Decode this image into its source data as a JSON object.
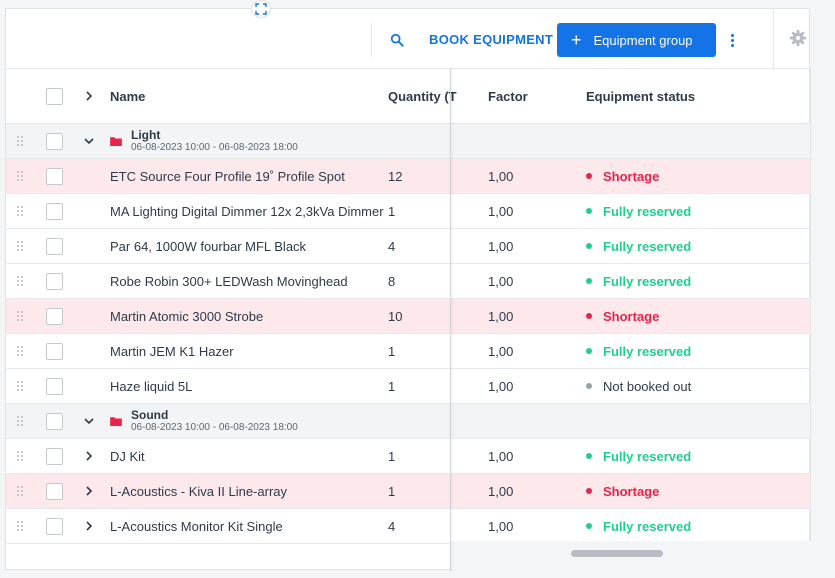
{
  "toolbar": {
    "book_label": "BOOK EQUIPMENT",
    "group_label": "Equipment group",
    "group_plus": "+"
  },
  "header": {
    "name": "Name",
    "quantity": "Quantity (T",
    "factor": "Factor",
    "status": "Equipment status"
  },
  "colors": {
    "accent": "#1473e6",
    "shortage": "#e8244b",
    "fully_reserved": "#1fcf8e",
    "not_booked_out": "#9aa0a8",
    "shortage_row_bg": "#fde8ec",
    "folder": "#e8244b"
  },
  "groups": [
    {
      "name": "Light",
      "date": "06-08-2023 10:00 - 06-08-2023 18:00",
      "rows": [
        {
          "name": "ETC Source Four Profile 19˚ Profile Spot",
          "qty": "12",
          "factor": "1,00",
          "status": "Shortage",
          "kind": "short",
          "expandable": false
        },
        {
          "name": "MA Lighting Digital Dimmer 12x 2,3kVa Dimmer",
          "qty": "1",
          "factor": "1,00",
          "status": "Fully reserved",
          "kind": "full",
          "expandable": false
        },
        {
          "name": "Par 64, 1000W fourbar MFL Black",
          "qty": "4",
          "factor": "1,00",
          "status": "Fully reserved",
          "kind": "full",
          "expandable": false
        },
        {
          "name": "Robe Robin 300+ LEDWash Movinghead",
          "qty": "8",
          "factor": "1,00",
          "status": "Fully reserved",
          "kind": "full",
          "expandable": false
        },
        {
          "name": "Martin Atomic 3000 Strobe",
          "qty": "10",
          "factor": "1,00",
          "status": "Shortage",
          "kind": "short",
          "expandable": false
        },
        {
          "name": "Martin JEM K1 Hazer",
          "qty": "1",
          "factor": "1,00",
          "status": "Fully reserved",
          "kind": "full",
          "expandable": false
        },
        {
          "name": "Haze liquid 5L",
          "qty": "1",
          "factor": "1,00",
          "status": "Not booked out",
          "kind": "none",
          "expandable": false
        }
      ]
    },
    {
      "name": "Sound",
      "date": "06-08-2023 10:00 - 06-08-2023 18:00",
      "rows": [
        {
          "name": "DJ Kit",
          "qty": "1",
          "factor": "1,00",
          "status": "Fully reserved",
          "kind": "full",
          "expandable": true
        },
        {
          "name": "L-Acoustics - Kiva II Line-array",
          "qty": "1",
          "factor": "1,00",
          "status": "Shortage",
          "kind": "short",
          "expandable": true
        },
        {
          "name": "L-Acoustics Monitor Kit Single",
          "qty": "4",
          "factor": "1,00",
          "status": "Fully reserved",
          "kind": "full",
          "expandable": true
        }
      ]
    }
  ]
}
